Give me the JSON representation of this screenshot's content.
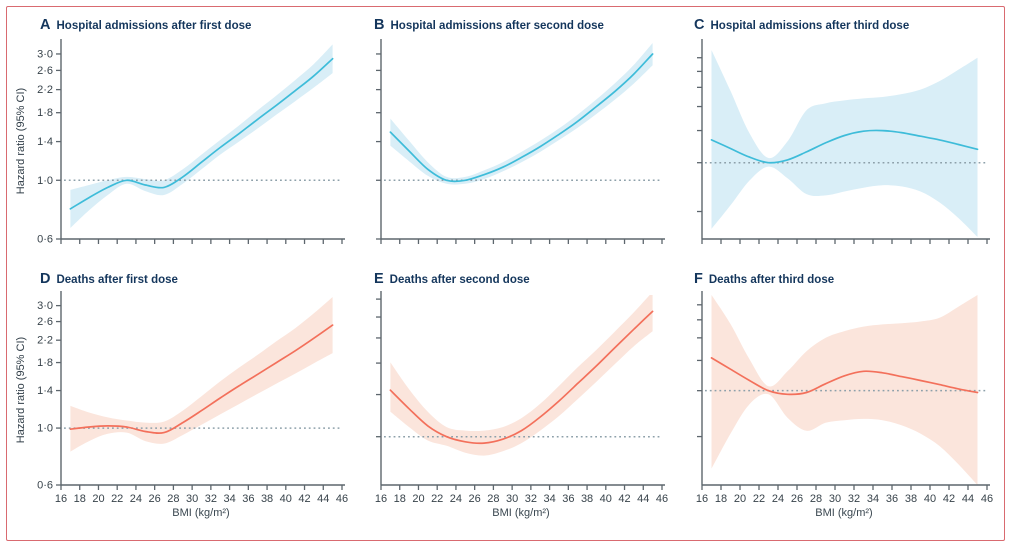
{
  "figure": {
    "border_color": "#D96A70",
    "ylabel": "Hazard ratio (95% CI)",
    "xlabel": "BMI (kg/m²)",
    "x_tick_labels": [
      "16",
      "18",
      "20",
      "22",
      "24",
      "26",
      "28",
      "30",
      "32",
      "34",
      "36",
      "38",
      "40",
      "42",
      "44",
      "46"
    ],
    "colors": {
      "blue_line": "#3EBCD9",
      "blue_band": "#D9EEF7",
      "red_line": "#F3705B",
      "red_band": "#FBE5DC",
      "reference_line": "#8DA0AA",
      "axis": "#5D666D",
      "tick_label": "#38434B",
      "title": "#14365C"
    }
  },
  "chart_data": [
    {
      "type": "line",
      "panel_label": "A",
      "title": "Hospital admissions after first dose",
      "series_color": "#3EBCD9",
      "band_color": "#D9EEF7",
      "yscale": "log",
      "xlim": [
        16,
        46
      ],
      "ylim": [
        0.6,
        3.3
      ],
      "reference_line": 1.0,
      "ytick_values": [
        3.0,
        2.6,
        2.2,
        1.8,
        1.4,
        1.0,
        0.6
      ],
      "ytick_labels": [
        "3·0",
        "2·6",
        "2·2",
        "1·8",
        "1·4",
        "1·0",
        "0·6"
      ],
      "show_xtick_labels": false,
      "x": [
        17,
        19,
        21,
        23,
        25,
        27,
        29,
        31,
        33,
        35,
        37,
        39,
        41,
        43,
        45
      ],
      "hazard_ratio": [
        0.78,
        0.86,
        0.94,
        1.0,
        0.96,
        0.94,
        1.03,
        1.17,
        1.33,
        1.5,
        1.7,
        1.92,
        2.18,
        2.48,
        2.88
      ],
      "ci_lower": [
        0.66,
        0.77,
        0.88,
        0.97,
        0.91,
        0.88,
        0.97,
        1.1,
        1.25,
        1.4,
        1.57,
        1.77,
        1.99,
        2.24,
        2.54
      ],
      "ci_upper": [
        0.92,
        0.96,
        1.0,
        1.03,
        1.01,
        1.0,
        1.1,
        1.25,
        1.42,
        1.61,
        1.84,
        2.09,
        2.39,
        2.75,
        3.26
      ]
    },
    {
      "type": "line",
      "panel_label": "B",
      "title": "Hospital admissions after second dose",
      "series_color": "#3EBCD9",
      "band_color": "#D9EEF7",
      "yscale": "log",
      "xlim": [
        16,
        46
      ],
      "ylim": [
        0.6,
        3.3
      ],
      "reference_line": 1.0,
      "ytick_values": [
        3.0,
        2.6,
        2.2,
        1.8,
        1.4,
        1.0,
        0.6
      ],
      "ytick_labels": null,
      "show_xtick_labels": false,
      "x": [
        17,
        19,
        21,
        23,
        25,
        27,
        29,
        31,
        33,
        35,
        37,
        39,
        41,
        43,
        45
      ],
      "hazard_ratio": [
        1.52,
        1.29,
        1.1,
        1.0,
        1.0,
        1.05,
        1.12,
        1.22,
        1.34,
        1.49,
        1.67,
        1.9,
        2.17,
        2.52,
        3.0
      ],
      "ci_lower": [
        1.35,
        1.18,
        1.04,
        0.97,
        0.97,
        1.01,
        1.08,
        1.17,
        1.28,
        1.42,
        1.58,
        1.78,
        2.02,
        2.32,
        2.72
      ],
      "ci_upper": [
        1.71,
        1.41,
        1.17,
        1.03,
        1.03,
        1.09,
        1.17,
        1.28,
        1.41,
        1.57,
        1.77,
        2.02,
        2.33,
        2.73,
        3.3
      ]
    },
    {
      "type": "line",
      "panel_label": "C",
      "title": "Hospital admissions after third dose",
      "series_color": "#3EBCD9",
      "band_color": "#D9EEF7",
      "yscale": "log",
      "xlim": [
        16,
        46
      ],
      "ylim": [
        0.45,
        3.5
      ],
      "reference_line": 1.0,
      "ytick_values": [
        3.0,
        2.6,
        2.2,
        1.8,
        1.4,
        1.0,
        0.6
      ],
      "ytick_labels": null,
      "show_xtick_labels": false,
      "x": [
        17,
        19,
        21,
        23,
        25,
        27,
        29,
        31,
        33,
        35,
        37,
        39,
        41,
        43,
        45
      ],
      "hazard_ratio": [
        1.27,
        1.16,
        1.06,
        1.0,
        1.03,
        1.12,
        1.23,
        1.33,
        1.39,
        1.4,
        1.37,
        1.32,
        1.27,
        1.21,
        1.15
      ],
      "ci_lower": [
        0.5,
        0.64,
        0.83,
        0.96,
        0.85,
        0.72,
        0.71,
        0.74,
        0.77,
        0.79,
        0.78,
        0.74,
        0.66,
        0.56,
        0.46
      ],
      "ci_upper": [
        3.25,
        2.12,
        1.36,
        1.05,
        1.25,
        1.73,
        1.86,
        1.92,
        1.96,
        1.99,
        2.05,
        2.15,
        2.35,
        2.65,
        3.0
      ]
    },
    {
      "type": "line",
      "panel_label": "D",
      "title": "Deaths after first dose",
      "series_color": "#F3705B",
      "band_color": "#FBE5DC",
      "yscale": "log",
      "xlim": [
        16,
        46
      ],
      "ylim": [
        0.6,
        3.3
      ],
      "reference_line": 1.0,
      "ytick_values": [
        3.0,
        2.6,
        2.2,
        1.8,
        1.4,
        1.0,
        0.6
      ],
      "ytick_labels": [
        "3·0",
        "2·6",
        "2·2",
        "1·8",
        "1·4",
        "1·0",
        "0·6"
      ],
      "show_xtick_labels": true,
      "x": [
        17,
        19,
        21,
        23,
        25,
        27,
        29,
        31,
        33,
        35,
        37,
        39,
        41,
        43,
        45
      ],
      "hazard_ratio": [
        0.99,
        1.01,
        1.02,
        1.01,
        0.97,
        0.96,
        1.05,
        1.17,
        1.31,
        1.46,
        1.62,
        1.8,
        2.0,
        2.24,
        2.52
      ],
      "ci_lower": [
        0.81,
        0.89,
        0.95,
        0.96,
        0.89,
        0.87,
        0.94,
        1.03,
        1.13,
        1.24,
        1.36,
        1.49,
        1.63,
        1.79,
        1.96
      ],
      "ci_upper": [
        1.22,
        1.15,
        1.1,
        1.07,
        1.05,
        1.06,
        1.17,
        1.33,
        1.52,
        1.72,
        1.93,
        2.18,
        2.45,
        2.8,
        3.24
      ]
    },
    {
      "type": "line",
      "panel_label": "E",
      "title": "Deaths after second dose",
      "series_color": "#F3705B",
      "band_color": "#FBE5DC",
      "yscale": "log",
      "xlim": [
        16,
        46
      ],
      "ylim": [
        0.68,
        3.1
      ],
      "reference_line": 1.0,
      "ytick_values": [
        3.0,
        2.6,
        2.2,
        1.8,
        1.4,
        1.0
      ],
      "ytick_labels": null,
      "show_xtick_labels": true,
      "x": [
        17,
        19,
        21,
        23,
        25,
        27,
        29,
        31,
        33,
        35,
        37,
        39,
        41,
        43,
        45
      ],
      "hazard_ratio": [
        1.45,
        1.25,
        1.09,
        1.0,
        0.96,
        0.95,
        0.98,
        1.05,
        1.17,
        1.33,
        1.53,
        1.76,
        2.04,
        2.36,
        2.72
      ],
      "ci_lower": [
        1.22,
        1.08,
        0.97,
        0.93,
        0.88,
        0.86,
        0.89,
        0.95,
        1.05,
        1.18,
        1.35,
        1.55,
        1.79,
        2.06,
        2.32
      ],
      "ci_upper": [
        1.81,
        1.46,
        1.22,
        1.08,
        1.05,
        1.05,
        1.08,
        1.16,
        1.3,
        1.5,
        1.74,
        2.0,
        2.32,
        2.7,
        3.18
      ]
    },
    {
      "type": "line",
      "panel_label": "F",
      "title": "Deaths after third dose",
      "series_color": "#F3705B",
      "band_color": "#FBE5DC",
      "yscale": "log",
      "xlim": [
        16,
        46
      ],
      "ylim": [
        0.35,
        2.9
      ],
      "reference_line": 1.0,
      "ytick_values": [
        2.6,
        2.2,
        1.8,
        1.4,
        1.0,
        0.6
      ],
      "ytick_labels": null,
      "show_xtick_labels": true,
      "x": [
        17,
        19,
        21,
        23,
        25,
        27,
        29,
        31,
        33,
        35,
        37,
        39,
        41,
        43,
        45
      ],
      "hazard_ratio": [
        1.44,
        1.27,
        1.12,
        1.0,
        0.96,
        0.98,
        1.08,
        1.18,
        1.24,
        1.22,
        1.17,
        1.12,
        1.07,
        1.02,
        0.98
      ],
      "ci_lower": [
        0.42,
        0.62,
        0.86,
        0.96,
        0.74,
        0.64,
        0.7,
        0.72,
        0.73,
        0.72,
        0.68,
        0.62,
        0.54,
        0.44,
        0.35
      ],
      "ci_upper": [
        2.9,
        2.1,
        1.42,
        1.05,
        1.24,
        1.55,
        1.8,
        1.94,
        2.04,
        2.09,
        2.12,
        2.16,
        2.25,
        2.55,
        2.9
      ]
    }
  ]
}
